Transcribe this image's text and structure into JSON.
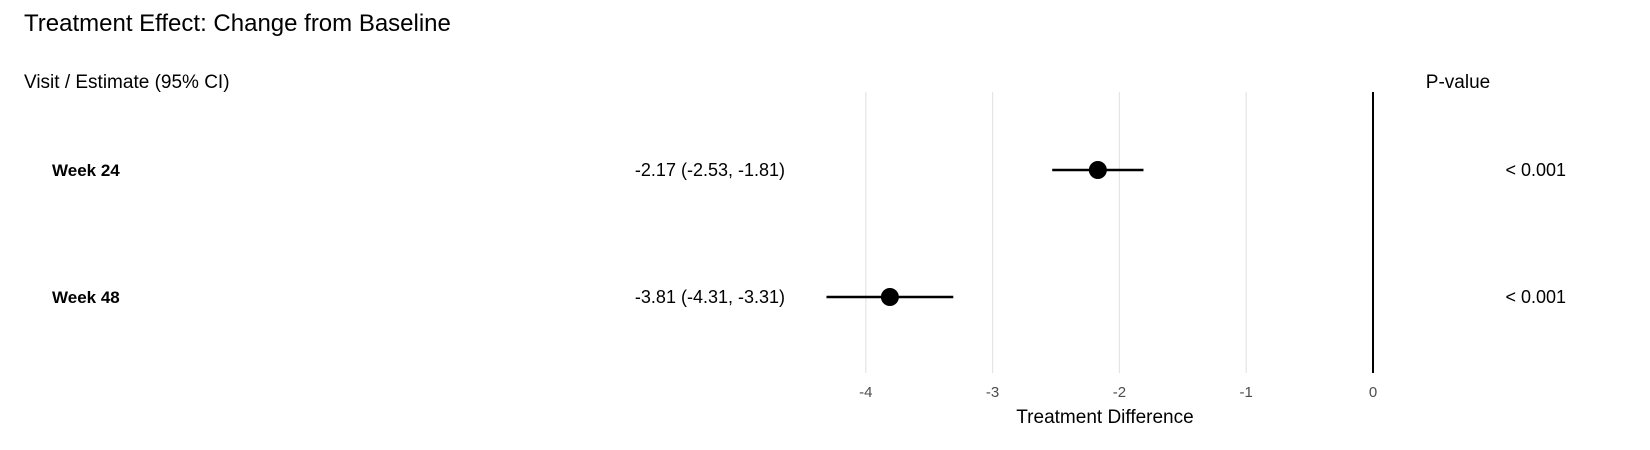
{
  "chart_data": {
    "type": "forest",
    "title": "Treatment Effect: Change from Baseline",
    "left_header": "Visit / Estimate (95% CI)",
    "right_header": "P-value",
    "xlabel": "Treatment Difference",
    "xlim": [
      -4.35,
      0
    ],
    "xticks": [
      -4,
      -3,
      -2,
      -1,
      0
    ],
    "xtick_labels": [
      "-4",
      "-3",
      "-2",
      "-1",
      "0"
    ],
    "reference_line": 0,
    "grid": "vertical major",
    "rows": [
      {
        "label": "Week 24",
        "estimate": -2.17,
        "lower": -2.53,
        "upper": -1.81,
        "estimate_text": "-2.17 (-2.53, -1.81)",
        "p_value": "< 0.001"
      },
      {
        "label": "Week 48",
        "estimate": -3.81,
        "lower": -4.31,
        "upper": -3.31,
        "estimate_text": "-3.81 (-4.31, -3.31)",
        "p_value": "< 0.001"
      }
    ],
    "colors": {
      "point": "#000000",
      "grid": "#e5e5e5",
      "reference": "#000000",
      "tick_text": "#4d4d4d"
    }
  }
}
